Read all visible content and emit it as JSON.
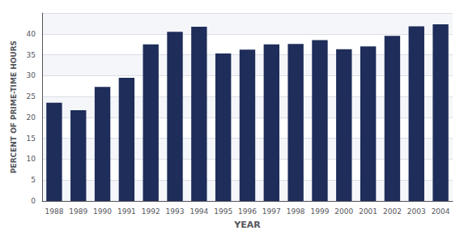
{
  "chart_data": {
    "type": "bar",
    "categories": [
      "1988",
      "1989",
      "1990",
      "1991",
      "1992",
      "1993",
      "1994",
      "1995",
      "1996",
      "1997",
      "1998",
      "1999",
      "2000",
      "2001",
      "2002",
      "2003",
      "2004"
    ],
    "values": [
      23.5,
      21.7,
      27.3,
      29.5,
      37.5,
      40.5,
      41.7,
      35.3,
      36.2,
      37.5,
      37.6,
      38.5,
      36.3,
      37.0,
      39.5,
      41.8,
      42.3
    ],
    "color": "#1e2d5a",
    "xlabel": "YEAR",
    "ylabel": "PERCENT OF PRIME-TIME HOURS",
    "ylim": [
      0,
      45
    ],
    "yticks": [
      0,
      5,
      10,
      15,
      20,
      25,
      30,
      35,
      40
    ],
    "grid": true
  }
}
